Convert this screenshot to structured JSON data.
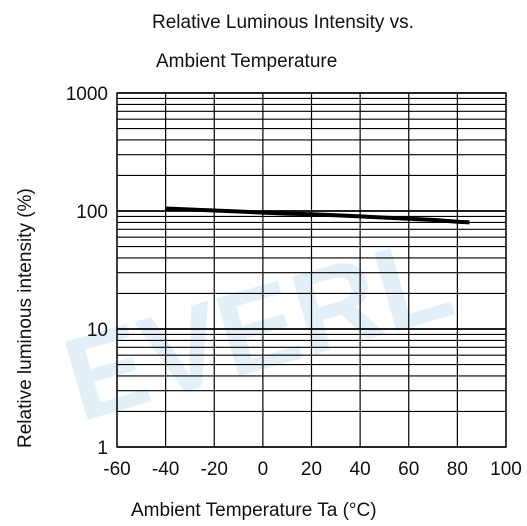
{
  "chart_data": {
    "type": "line",
    "title_lines": [
      "Relative Luminous Intensity vs.",
      "Ambient Temperature"
    ],
    "xlabel": "Ambient Temperature Ta (°C)",
    "ylabel": "Relative luminous intensity (%)",
    "xlim": [
      -60,
      100
    ],
    "ylim": [
      1,
      1000
    ],
    "yscale": "log",
    "x_ticks": [
      "-60",
      "-40",
      "-20",
      "0",
      "20",
      "40",
      "60",
      "80",
      "100"
    ],
    "x_tick_values": [
      -60,
      -40,
      -20,
      0,
      20,
      40,
      60,
      80,
      100
    ],
    "y_ticks": [
      "1",
      "10",
      "100",
      "1000"
    ],
    "y_tick_values": [
      1,
      10,
      100,
      1000
    ],
    "grid": true,
    "series": [
      {
        "x": [
          -40,
          -30,
          -20,
          -10,
          0,
          10,
          20,
          30,
          40,
          50,
          60,
          70,
          80,
          85
        ],
        "y": [
          105,
          103,
          101,
          99,
          97,
          95,
          94,
          92,
          90,
          88,
          86,
          84,
          81,
          80
        ]
      }
    ],
    "line_color": "#000000",
    "grid_color": "#000000",
    "watermark": "EVERL"
  }
}
